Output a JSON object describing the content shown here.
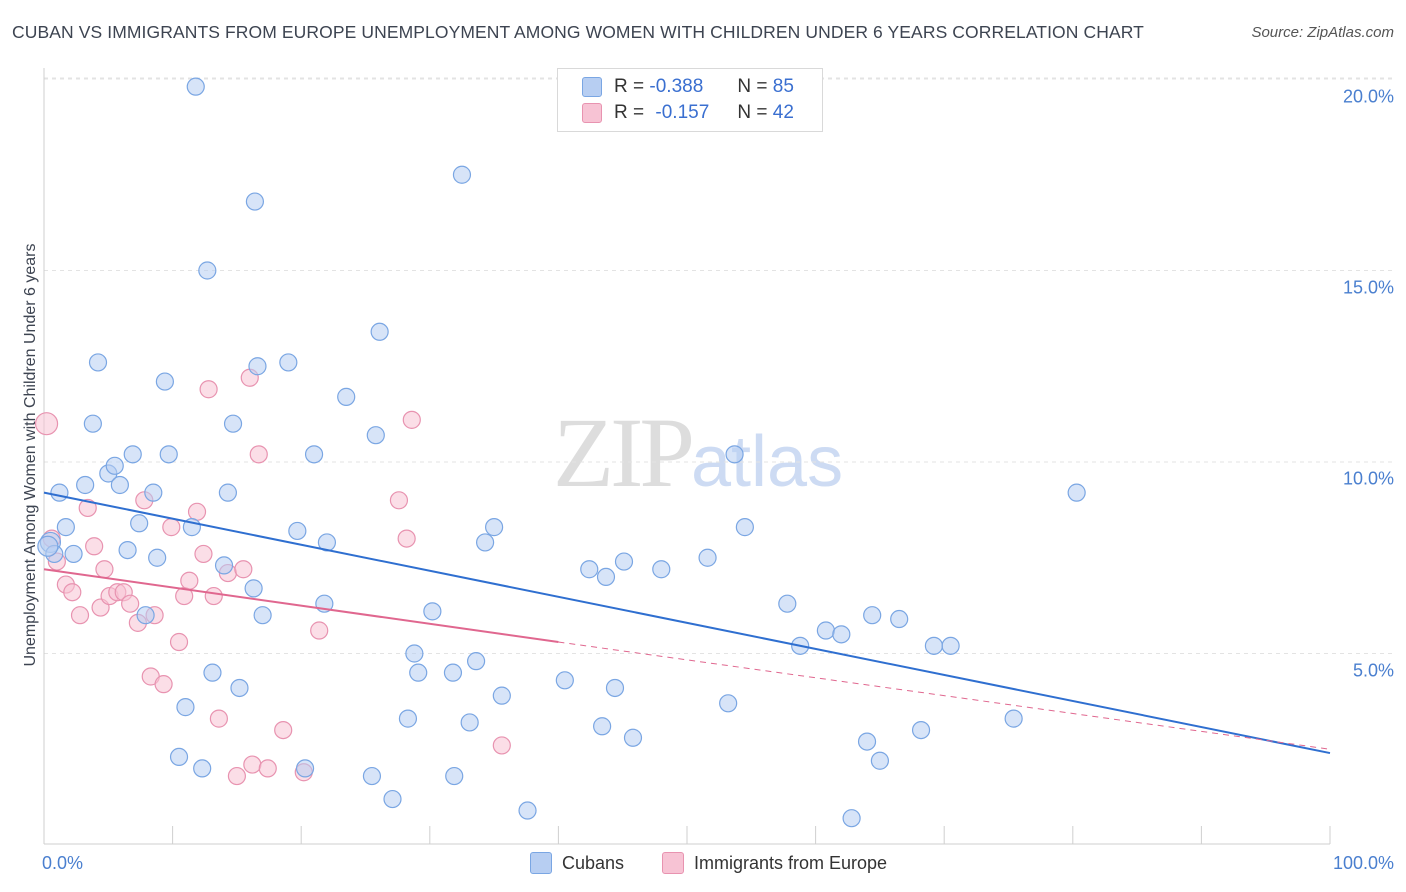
{
  "header": {
    "title": "CUBAN VS IMMIGRANTS FROM EUROPE UNEMPLOYMENT AMONG WOMEN WITH CHILDREN UNDER 6 YEARS CORRELATION CHART",
    "source": "Source: ZipAtlas.com"
  },
  "watermark": {
    "zip": "ZIP",
    "atlas": "atlas"
  },
  "legend": {
    "rows": [
      {
        "r_label": "R =",
        "r_value": "-0.388",
        "n_label": "N =",
        "n_value": "85"
      },
      {
        "r_label": "R =",
        "r_value": "-0.157",
        "n_label": "N =",
        "n_value": "42"
      }
    ]
  },
  "bottom_legend": {
    "series1": "Cubans",
    "series2": "Immigrants from Europe"
  },
  "colors": {
    "cubans_fill": "#b7cef2",
    "cubans_stroke": "#7aa6e3",
    "cubans_line": "#2f6fd0",
    "europe_fill": "#f7c3d4",
    "europe_stroke": "#e893b0",
    "europe_line": "#e0678f",
    "grid": "#e3e3e3",
    "axis_text": "#4a7fcf"
  },
  "chart_data": {
    "type": "scatter",
    "title": "CUBAN VS IMMIGRANTS FROM EUROPE UNEMPLOYMENT AMONG WOMEN WITH CHILDREN UNDER 6 YEARS CORRELATION CHART",
    "xlabel": "",
    "ylabel": "Unemployment Among Women with Children Under 6 years",
    "xlim": [
      0,
      100
    ],
    "ylim": [
      0,
      20
    ],
    "x_tick_labels": [
      "0.0%",
      "100.0%"
    ],
    "y_tick_labels": [
      "5.0%",
      "10.0%",
      "15.0%",
      "20.0%"
    ],
    "y_ticks": [
      5,
      10,
      15,
      20
    ],
    "grid": true,
    "legend_position": "top-center",
    "series": [
      {
        "name": "Cubans",
        "r": -0.388,
        "n": 85,
        "trend": {
          "x": [
            0,
            100
          ],
          "y": [
            9.2,
            2.4
          ]
        },
        "points": [
          [
            0.5,
            7.9
          ],
          [
            0.8,
            7.6
          ],
          [
            1.2,
            9.2
          ],
          [
            1.7,
            8.3
          ],
          [
            2.3,
            7.6
          ],
          [
            3.2,
            9.4
          ],
          [
            3.8,
            11.0
          ],
          [
            4.2,
            12.6
          ],
          [
            5.0,
            9.7
          ],
          [
            5.5,
            9.9
          ],
          [
            5.9,
            9.4
          ],
          [
            6.5,
            7.7
          ],
          [
            6.9,
            10.2
          ],
          [
            7.4,
            8.4
          ],
          [
            7.9,
            6.0
          ],
          [
            8.5,
            9.2
          ],
          [
            8.8,
            7.5
          ],
          [
            9.4,
            12.1
          ],
          [
            9.7,
            10.2
          ],
          [
            10.5,
            2.3
          ],
          [
            11.0,
            3.6
          ],
          [
            11.5,
            8.3
          ],
          [
            11.8,
            19.8
          ],
          [
            12.3,
            2.0
          ],
          [
            12.7,
            15.0
          ],
          [
            13.1,
            4.5
          ],
          [
            14.0,
            7.3
          ],
          [
            14.3,
            9.2
          ],
          [
            14.7,
            11.0
          ],
          [
            15.2,
            4.1
          ],
          [
            16.3,
            6.7
          ],
          [
            16.4,
            16.8
          ],
          [
            16.6,
            12.5
          ],
          [
            17.0,
            6.0
          ],
          [
            19.0,
            12.6
          ],
          [
            19.7,
            8.2
          ],
          [
            20.3,
            2.0
          ],
          [
            21.0,
            10.2
          ],
          [
            21.8,
            6.3
          ],
          [
            22.0,
            7.9
          ],
          [
            23.5,
            11.7
          ],
          [
            25.5,
            1.8
          ],
          [
            25.8,
            10.7
          ],
          [
            26.1,
            13.4
          ],
          [
            27.1,
            1.2
          ],
          [
            28.3,
            3.3
          ],
          [
            28.8,
            5.0
          ],
          [
            29.1,
            4.5
          ],
          [
            30.2,
            6.1
          ],
          [
            31.8,
            4.5
          ],
          [
            31.9,
            1.8
          ],
          [
            32.5,
            17.5
          ],
          [
            33.1,
            3.2
          ],
          [
            33.6,
            4.8
          ],
          [
            34.3,
            7.9
          ],
          [
            35.0,
            8.3
          ],
          [
            35.6,
            3.9
          ],
          [
            37.6,
            0.9
          ],
          [
            40.5,
            4.3
          ],
          [
            42.4,
            7.2
          ],
          [
            43.4,
            3.1
          ],
          [
            43.7,
            7.0
          ],
          [
            44.4,
            4.1
          ],
          [
            45.1,
            7.4
          ],
          [
            45.8,
            2.8
          ],
          [
            48.0,
            7.2
          ],
          [
            51.6,
            7.5
          ],
          [
            53.2,
            3.7
          ],
          [
            53.7,
            10.2
          ],
          [
            54.5,
            8.3
          ],
          [
            57.8,
            6.3
          ],
          [
            58.8,
            5.2
          ],
          [
            60.8,
            5.6
          ],
          [
            62.0,
            5.5
          ],
          [
            62.8,
            0.7
          ],
          [
            64.0,
            2.7
          ],
          [
            64.4,
            6.0
          ],
          [
            65.0,
            2.2
          ],
          [
            66.5,
            5.9
          ],
          [
            68.2,
            3.0
          ],
          [
            69.2,
            5.2
          ],
          [
            70.5,
            5.2
          ],
          [
            75.4,
            3.3
          ],
          [
            80.3,
            9.2
          ],
          [
            0.3,
            7.8
          ]
        ]
      },
      {
        "name": "Immigrants from Europe",
        "r": -0.157,
        "n": 42,
        "trend": {
          "x": [
            0,
            40
          ],
          "y": [
            7.2,
            5.3
          ]
        },
        "trend_dashed": {
          "x": [
            40,
            100
          ],
          "y": [
            5.3,
            2.5
          ]
        },
        "points": [
          [
            0.2,
            11.0
          ],
          [
            0.6,
            8.0
          ],
          [
            1.0,
            7.4
          ],
          [
            1.7,
            6.8
          ],
          [
            2.2,
            6.6
          ],
          [
            2.8,
            6.0
          ],
          [
            3.4,
            8.8
          ],
          [
            3.9,
            7.8
          ],
          [
            4.4,
            6.2
          ],
          [
            4.7,
            7.2
          ],
          [
            5.1,
            6.5
          ],
          [
            5.7,
            6.6
          ],
          [
            6.2,
            6.6
          ],
          [
            6.7,
            6.3
          ],
          [
            7.3,
            5.8
          ],
          [
            7.8,
            9.0
          ],
          [
            8.3,
            4.4
          ],
          [
            8.6,
            6.0
          ],
          [
            9.3,
            4.2
          ],
          [
            9.9,
            8.3
          ],
          [
            10.5,
            5.3
          ],
          [
            10.9,
            6.5
          ],
          [
            11.3,
            6.9
          ],
          [
            11.9,
            8.7
          ],
          [
            12.4,
            7.6
          ],
          [
            12.8,
            11.9
          ],
          [
            13.2,
            6.5
          ],
          [
            13.6,
            3.3
          ],
          [
            14.3,
            7.1
          ],
          [
            15.0,
            1.8
          ],
          [
            15.5,
            7.2
          ],
          [
            16.0,
            12.2
          ],
          [
            16.2,
            2.1
          ],
          [
            16.7,
            10.2
          ],
          [
            17.4,
            2.0
          ],
          [
            18.6,
            3.0
          ],
          [
            20.2,
            1.9
          ],
          [
            21.4,
            5.6
          ],
          [
            27.6,
            9.0
          ],
          [
            28.2,
            8.0
          ],
          [
            28.6,
            11.1
          ],
          [
            35.6,
            2.6
          ]
        ]
      }
    ]
  }
}
